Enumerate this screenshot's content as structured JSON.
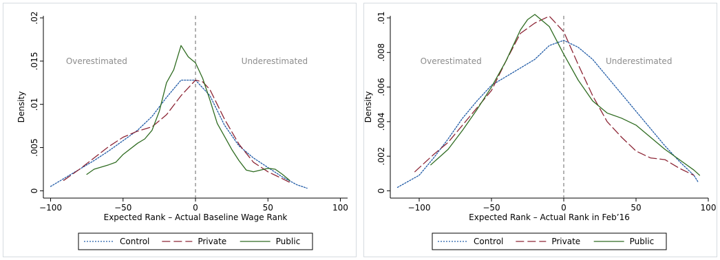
{
  "chart_data": [
    {
      "type": "line",
      "xlabel": "Expected Rank – Actual Baseline Wage Rank",
      "ylabel": "Density",
      "xlim": [
        -100,
        100
      ],
      "ylim": [
        0,
        0.02
      ],
      "xticks": [
        "−100",
        "−50",
        "0",
        "50",
        "100"
      ],
      "yticks": [
        "0",
        ".005",
        ".01",
        ".015",
        ".02"
      ],
      "annotations": {
        "left": "Overestimated",
        "right": "Underestimated"
      },
      "vline_x": 0,
      "legend": {
        "position": "bottom"
      },
      "series": [
        {
          "name": "Control",
          "color": "#1f5aa6",
          "style": "dotted",
          "x": [
            -100,
            -90,
            -80,
            -70,
            -60,
            -50,
            -40,
            -30,
            -20,
            -10,
            0,
            10,
            20,
            30,
            40,
            50,
            60,
            70,
            77
          ],
          "y": [
            0.0005,
            0.0015,
            0.0025,
            0.0035,
            0.0046,
            0.0058,
            0.007,
            0.0086,
            0.0108,
            0.0128,
            0.0128,
            0.011,
            0.0076,
            0.0052,
            0.0038,
            0.0027,
            0.0016,
            0.0007,
            0.0003
          ]
        },
        {
          "name": "Private",
          "color": "#8c2434",
          "style": "dashed",
          "x": [
            -91,
            -80,
            -70,
            -60,
            -50,
            -40,
            -30,
            -20,
            -10,
            0,
            5,
            10,
            20,
            30,
            40,
            50,
            60,
            66
          ],
          "y": [
            0.0012,
            0.0025,
            0.0038,
            0.0051,
            0.0062,
            0.0069,
            0.0074,
            0.0088,
            0.011,
            0.0128,
            0.0126,
            0.0117,
            0.0083,
            0.0054,
            0.0033,
            0.0022,
            0.0014,
            0.0009
          ]
        },
        {
          "name": "Public",
          "color": "#2e6b20",
          "style": "solid",
          "x": [
            -75,
            -70,
            -60,
            -55,
            -50,
            -40,
            -35,
            -30,
            -25,
            -20,
            -15,
            -10,
            -5,
            0,
            5,
            10,
            15,
            20,
            25,
            30,
            35,
            40,
            45,
            50,
            55,
            60,
            65
          ],
          "y": [
            0.0019,
            0.0025,
            0.003,
            0.0033,
            0.0042,
            0.0055,
            0.006,
            0.007,
            0.0092,
            0.0125,
            0.014,
            0.0168,
            0.0155,
            0.0148,
            0.013,
            0.0105,
            0.0078,
            0.0063,
            0.0048,
            0.0035,
            0.0024,
            0.0022,
            0.0024,
            0.0026,
            0.0025,
            0.0019,
            0.0012
          ]
        }
      ]
    },
    {
      "type": "line",
      "xlabel": "Expected Rank – Actual Rank in Feb’16",
      "ylabel": "Density",
      "xlim": [
        -100,
        100
      ],
      "ylim": [
        0,
        0.01
      ],
      "xticks": [
        "−100",
        "−50",
        "0",
        "50",
        "100"
      ],
      "yticks": [
        "0",
        ".002",
        ".004",
        ".006",
        ".008",
        ".01"
      ],
      "annotations": {
        "left": "Overestimated",
        "right": "Underestimated"
      },
      "vline_x": 0,
      "legend": {
        "position": "bottom"
      },
      "series": [
        {
          "name": "Control",
          "color": "#1f5aa6",
          "style": "dotted",
          "x": [
            -115,
            -100,
            -90,
            -80,
            -70,
            -60,
            -50,
            -40,
            -30,
            -20,
            -10,
            0,
            10,
            20,
            30,
            40,
            50,
            60,
            70,
            80,
            90,
            93
          ],
          "y": [
            0.0002,
            0.0009,
            0.0019,
            0.003,
            0.0042,
            0.0052,
            0.0061,
            0.0066,
            0.0071,
            0.0076,
            0.0084,
            0.0087,
            0.0083,
            0.0076,
            0.0066,
            0.0056,
            0.0046,
            0.0036,
            0.0026,
            0.0017,
            0.0009,
            0.0005
          ]
        },
        {
          "name": "Private",
          "color": "#8c2434",
          "style": "dashed",
          "x": [
            -103,
            -90,
            -80,
            -70,
            -60,
            -50,
            -40,
            -30,
            -20,
            -10,
            0,
            10,
            20,
            30,
            40,
            50,
            60,
            70,
            80,
            90
          ],
          "y": [
            0.0011,
            0.0021,
            0.0028,
            0.0038,
            0.0048,
            0.0058,
            0.0075,
            0.0091,
            0.0097,
            0.0101,
            0.0092,
            0.0073,
            0.0055,
            0.004,
            0.0031,
            0.0023,
            0.0019,
            0.0018,
            0.0013,
            0.0009
          ]
        },
        {
          "name": "Public",
          "color": "#2e6b20",
          "style": "solid",
          "x": [
            -92,
            -80,
            -70,
            -60,
            -50,
            -40,
            -30,
            -25,
            -20,
            -10,
            0,
            10,
            20,
            30,
            40,
            50,
            60,
            70,
            80,
            90,
            94
          ],
          "y": [
            0.0015,
            0.0024,
            0.0035,
            0.0047,
            0.006,
            0.0075,
            0.0093,
            0.0099,
            0.0102,
            0.0095,
            0.0079,
            0.0064,
            0.0052,
            0.0045,
            0.0042,
            0.0038,
            0.0031,
            0.0024,
            0.0018,
            0.0012,
            0.0009
          ]
        }
      ]
    }
  ]
}
